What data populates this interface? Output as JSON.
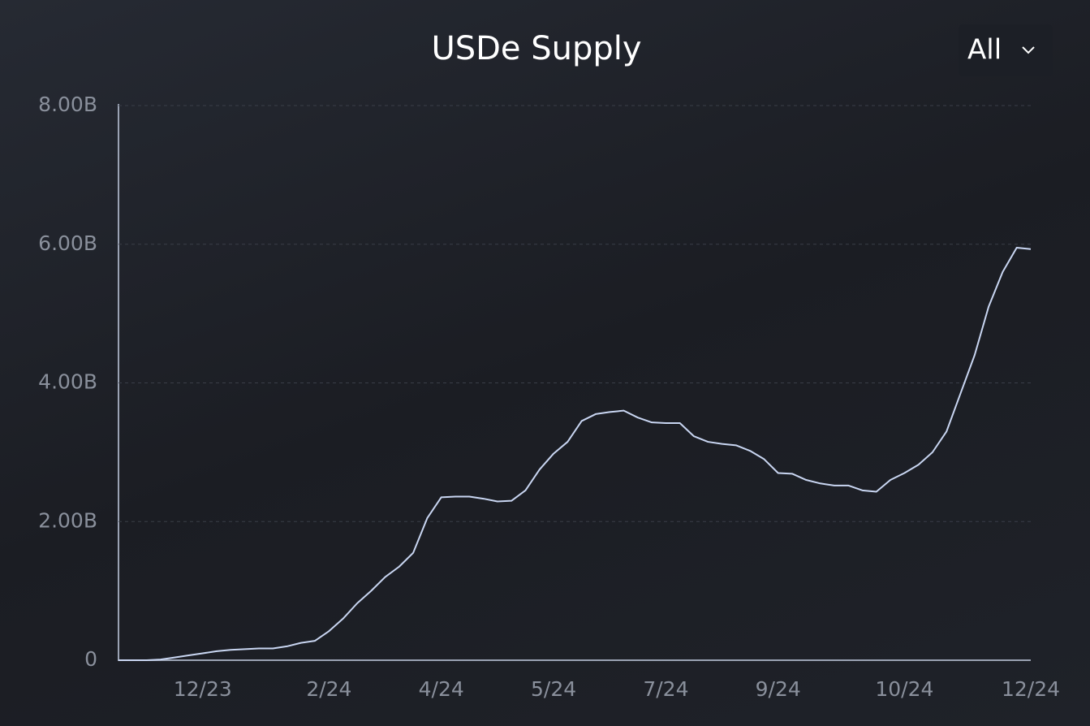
{
  "chart_data": {
    "type": "line",
    "title": "USDe Supply",
    "dropdown": "All",
    "categories": [
      null,
      null,
      null,
      null,
      null,
      null,
      "12/23",
      null,
      null,
      null,
      null,
      null,
      null,
      null,
      null,
      "2/24",
      null,
      null,
      null,
      null,
      null,
      null,
      null,
      "4/24",
      null,
      null,
      null,
      null,
      null,
      null,
      null,
      "5/24",
      null,
      null,
      null,
      null,
      null,
      null,
      null,
      "7/24",
      null,
      null,
      null,
      null,
      null,
      null,
      null,
      "9/24",
      null,
      null,
      null,
      null,
      null,
      null,
      null,
      null,
      "10/24",
      null,
      null,
      null,
      null,
      null,
      null,
      null,
      null,
      "12/24"
    ],
    "series": [
      {
        "name": "USDe Supply",
        "color": "#c9d6f2",
        "values": [
          0,
          0,
          0,
          0.01,
          0.04,
          0.07,
          0.1,
          0.13,
          0.15,
          0.16,
          0.17,
          0.17,
          0.2,
          0.25,
          0.28,
          0.42,
          0.6,
          0.82,
          1.0,
          1.2,
          1.35,
          1.55,
          2.05,
          2.35,
          2.36,
          2.36,
          2.33,
          2.29,
          2.3,
          2.45,
          2.75,
          2.98,
          3.15,
          3.45,
          3.55,
          3.58,
          3.6,
          3.5,
          3.43,
          3.42,
          3.42,
          3.23,
          3.15,
          3.12,
          3.1,
          3.02,
          2.9,
          2.7,
          2.69,
          2.6,
          2.55,
          2.52,
          2.52,
          2.45,
          2.43,
          2.6,
          2.7,
          2.82,
          3.0,
          3.3,
          3.85,
          4.4,
          5.1,
          5.6,
          5.95,
          5.93
        ]
      }
    ],
    "ylim": [
      0,
      8
    ],
    "yticks": [
      0,
      {
        "value": 2,
        "label": "2.00B"
      },
      {
        "value": 4,
        "label": "4.00B"
      },
      {
        "value": 6,
        "label": "6.00B"
      },
      {
        "value": 8,
        "label": "8.00B"
      }
    ],
    "grid": true
  }
}
